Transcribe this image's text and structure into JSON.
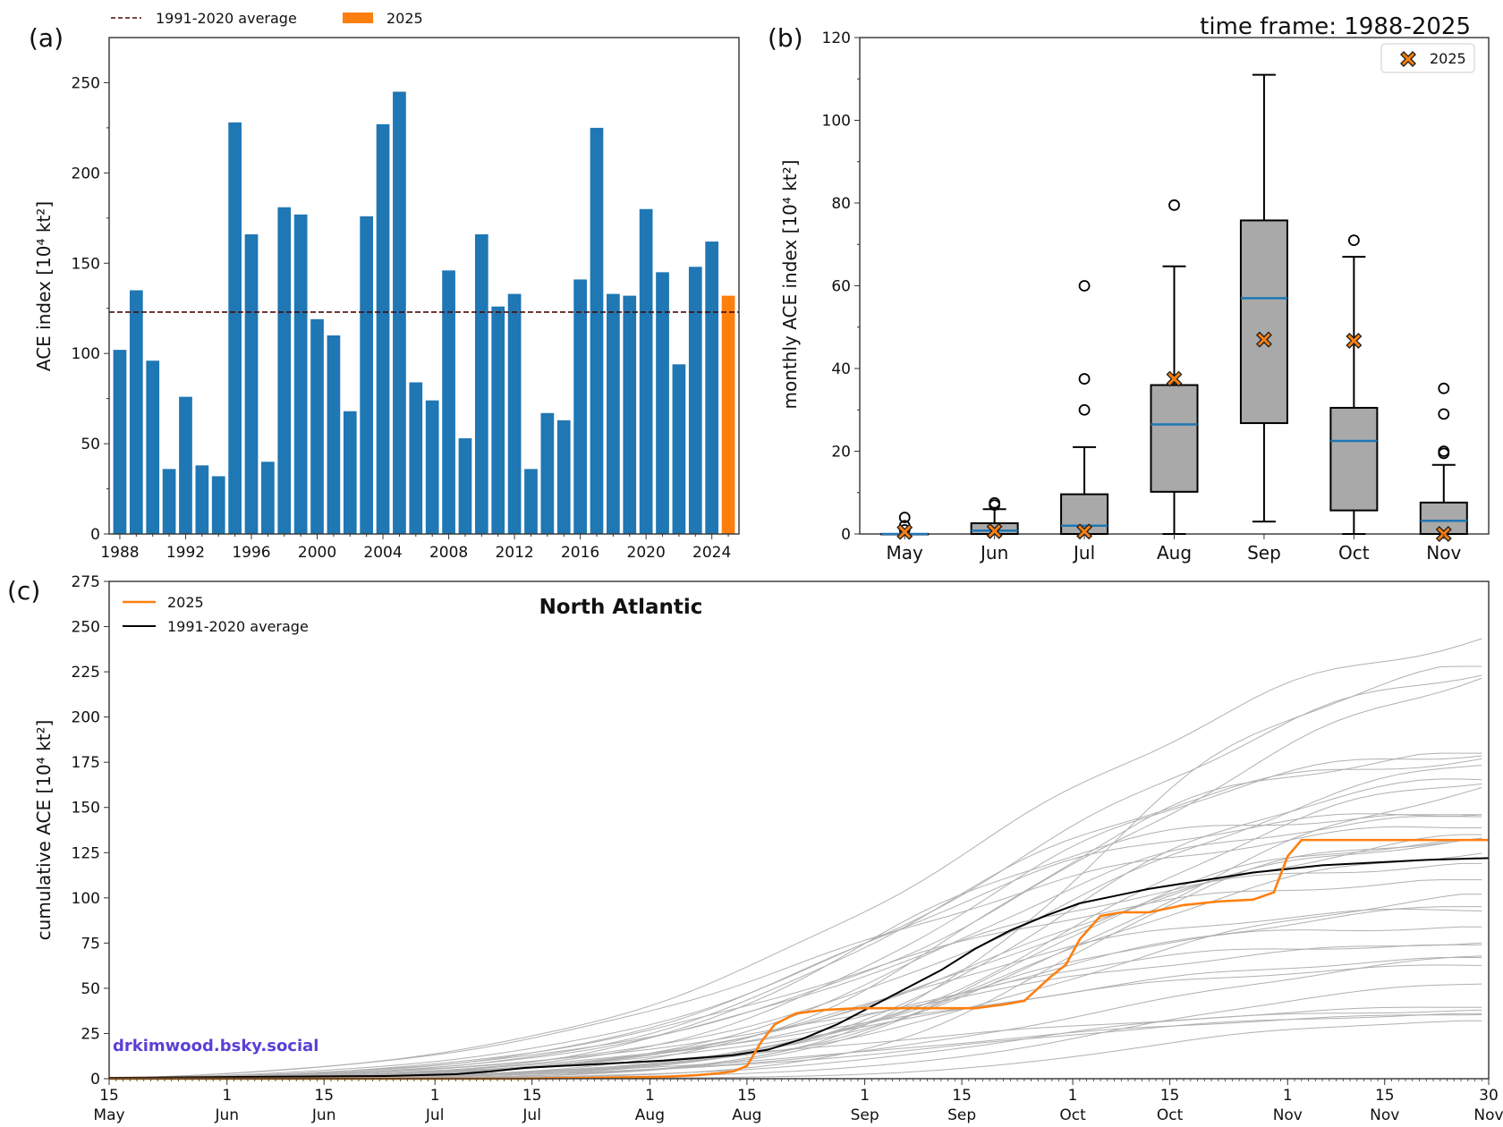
{
  "header": {
    "time_frame": "time frame: 1988-2025"
  },
  "colors": {
    "bars": "#1f77b4",
    "current": "#ff7f0e",
    "avg_line": "#4a0a0a",
    "box": "#a9a9a9",
    "median": "#1f77b4",
    "spaghetti": "#b0b0b0",
    "watermark": "#5b3fd6"
  },
  "watermark": "drkimwood.bsky.social",
  "chart_data": [
    {
      "panel": "(a)",
      "type": "bar",
      "title": "",
      "xlabel": "",
      "ylabel": "ACE index [10⁴ kt²]",
      "ylim": [
        0,
        275
      ],
      "yticks": [
        0,
        50,
        100,
        150,
        200,
        250
      ],
      "xticks": [
        "1988",
        "1992",
        "1996",
        "2000",
        "2004",
        "2008",
        "2012",
        "2016",
        "2020",
        "2024"
      ],
      "legend": {
        "placement": "top-left, outside",
        "entries": [
          "1991-2020 average",
          "2025"
        ]
      },
      "average_label": "1991-2020 average",
      "average_value": 122.9,
      "current_label": "2025",
      "categories": [
        "1988",
        "1989",
        "1990",
        "1991",
        "1992",
        "1993",
        "1994",
        "1995",
        "1996",
        "1997",
        "1998",
        "1999",
        "2000",
        "2001",
        "2002",
        "2003",
        "2004",
        "2005",
        "2006",
        "2007",
        "2008",
        "2009",
        "2010",
        "2011",
        "2012",
        "2013",
        "2014",
        "2015",
        "2016",
        "2017",
        "2018",
        "2019",
        "2020",
        "2021",
        "2022",
        "2023",
        "2024",
        "2025"
      ],
      "values": [
        102,
        135,
        96,
        36,
        76,
        38,
        32,
        228,
        166,
        40,
        181,
        177,
        119,
        110,
        68,
        176,
        227,
        245,
        84,
        74,
        146,
        53,
        166,
        126,
        133,
        36,
        67,
        63,
        141,
        225,
        133,
        132,
        180,
        145,
        94,
        148,
        162,
        132
      ]
    },
    {
      "panel": "(b)",
      "type": "box",
      "ylabel": "monthly ACE index [10⁴ kt²]",
      "ylim": [
        0,
        120
      ],
      "yticks": [
        0,
        20,
        40,
        60,
        80,
        100,
        120
      ],
      "legend": {
        "placement": "top-right",
        "entries": [
          "2025"
        ]
      },
      "categories": [
        "May",
        "Jun",
        "Jul",
        "Aug",
        "Sep",
        "Oct",
        "Nov"
      ],
      "boxes": [
        {
          "q1": 0,
          "median": 0,
          "q3": 0,
          "whislo": 0,
          "whishi": 0,
          "fliers": [
            1,
            2,
            4
          ]
        },
        {
          "q1": 0,
          "median": 0.8,
          "q3": 2.6,
          "whislo": 0,
          "whishi": 6,
          "fliers": [
            7,
            7.5
          ]
        },
        {
          "q1": 0,
          "median": 2,
          "q3": 9.6,
          "whislo": 0,
          "whishi": 21,
          "fliers": [
            30,
            37.5,
            60
          ]
        },
        {
          "q1": 10.2,
          "median": 26.5,
          "q3": 36,
          "whislo": 0,
          "whishi": 64.7,
          "fliers": [
            79.5
          ]
        },
        {
          "q1": 26.8,
          "median": 57,
          "q3": 75.8,
          "whislo": 3,
          "whishi": 111,
          "fliers": []
        },
        {
          "q1": 5.7,
          "median": 22.5,
          "q3": 30.5,
          "whislo": 0,
          "whishi": 67,
          "fliers": [
            71
          ]
        },
        {
          "q1": 0,
          "median": 3.2,
          "q3": 7.6,
          "whislo": 0,
          "whishi": 16.7,
          "fliers": [
            19.5,
            20,
            29,
            35.2
          ]
        }
      ],
      "current_year_values": [
        0.5,
        0.7,
        0.6,
        37.5,
        47,
        46.7,
        0
      ]
    },
    {
      "panel": "(c)",
      "type": "line",
      "title": "North Atlantic",
      "ylabel": "cumulative ACE [10⁴ kt²]",
      "ylim": [
        0,
        275
      ],
      "yticks": [
        0,
        25,
        50,
        75,
        100,
        125,
        150,
        175,
        200,
        225,
        250,
        275
      ],
      "xticks": [
        {
          "day": 0,
          "label": "15\nMay"
        },
        {
          "day": 17,
          "label": "1\nJun"
        },
        {
          "day": 31,
          "label": "15\nJun"
        },
        {
          "day": 47,
          "label": "1\nJul"
        },
        {
          "day": 61,
          "label": "15\nJul"
        },
        {
          "day": 78,
          "label": "1\nAug"
        },
        {
          "day": 92,
          "label": "15\nAug"
        },
        {
          "day": 109,
          "label": "1\nSep"
        },
        {
          "day": 123,
          "label": "15\nSep"
        },
        {
          "day": 139,
          "label": "1\nOct"
        },
        {
          "day": 153,
          "label": "15\nOct"
        },
        {
          "day": 170,
          "label": "1\nNov"
        },
        {
          "day": 184,
          "label": "15\nNov"
        },
        {
          "day": 199,
          "label": "30\nNov"
        }
      ],
      "xlim": [
        0,
        199
      ],
      "legend": {
        "placement": "top-left",
        "entries": [
          "2025",
          "1991-2020 average"
        ]
      },
      "series": [
        {
          "name": "2025",
          "x": [
            0,
            60,
            80,
            85,
            88,
            90,
            92,
            94,
            96,
            99,
            103,
            108,
            112,
            120,
            125,
            127,
            129,
            132,
            134,
            136,
            138,
            140,
            143,
            146,
            150,
            155,
            160,
            165,
            168,
            170,
            172,
            175,
            199
          ],
          "y": [
            0,
            0,
            1,
            2,
            3,
            4,
            7,
            20,
            30,
            36,
            38,
            39,
            39,
            39,
            39,
            40,
            41,
            43,
            50,
            57,
            63,
            77,
            90,
            92,
            92,
            96,
            98,
            99,
            103,
            123,
            132,
            132,
            132
          ]
        },
        {
          "name": "1991-2020 average",
          "x": [
            0,
            40,
            50,
            55,
            60,
            70,
            80,
            90,
            95,
            100,
            105,
            110,
            115,
            120,
            125,
            130,
            135,
            140,
            145,
            150,
            155,
            160,
            165,
            170,
            175,
            180,
            185,
            190,
            199
          ],
          "y": [
            0.5,
            1.5,
            2.5,
            4,
            6,
            8,
            10,
            13,
            16,
            22,
            30,
            40,
            50,
            60,
            72,
            82,
            90,
            97,
            101,
            105,
            108,
            111,
            114,
            116,
            118,
            119,
            120,
            121,
            122
          ]
        }
      ],
      "background_years_note": "gray lines: individual seasons 1988-2024 (final values match panel a)"
    }
  ]
}
